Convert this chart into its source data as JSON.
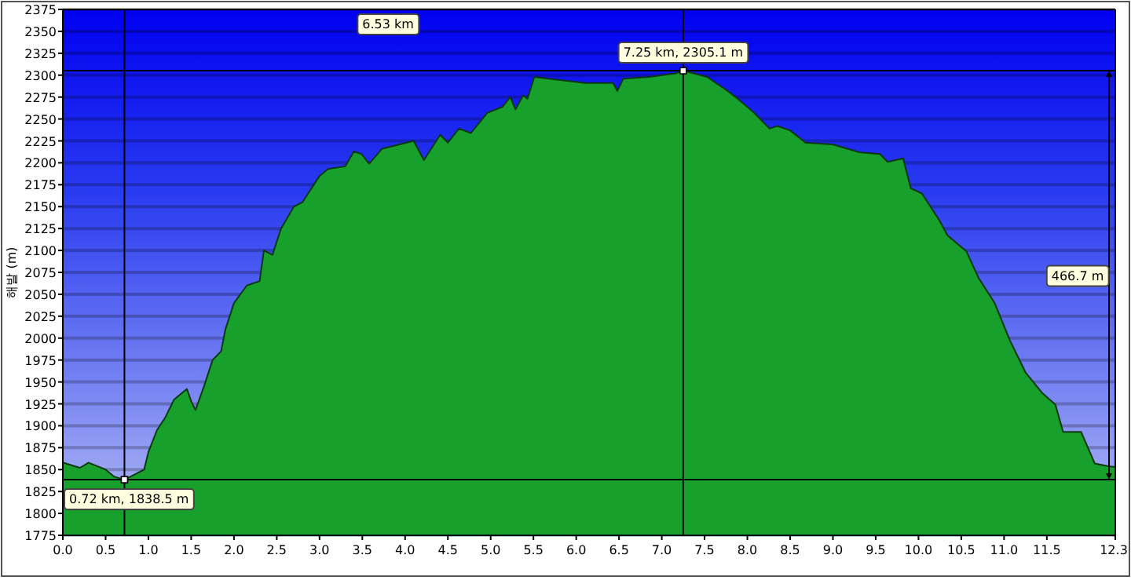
{
  "chart_data": {
    "type": "area",
    "ylabel": "해발 (m)",
    "color": "#17a02c",
    "x": [
      0,
      0.2,
      0.3,
      0.5,
      0.6,
      0.72,
      0.85,
      0.95,
      1.0,
      1.1,
      1.2,
      1.3,
      1.45,
      1.5,
      1.55,
      1.65,
      1.75,
      1.85,
      1.9,
      2.0,
      2.15,
      2.3,
      2.35,
      2.45,
      2.55,
      2.7,
      2.8,
      2.9,
      3.0,
      3.1,
      3.3,
      3.4,
      3.49,
      3.58,
      3.73,
      4.1,
      4.22,
      4.41,
      4.5,
      4.63,
      4.77,
      4.96,
      5.14,
      5.23,
      5.29,
      5.38,
      5.43,
      5.51,
      5.93,
      6.11,
      6.43,
      6.48,
      6.55,
      6.85,
      7.16,
      7.25,
      7.53,
      7.77,
      7.89,
      8.08,
      8.26,
      8.35,
      8.5,
      8.68,
      9.0,
      9.31,
      9.55,
      9.64,
      9.82,
      9.91,
      10.04,
      10.24,
      10.34,
      10.56,
      10.7,
      10.89,
      11.07,
      11.25,
      11.44,
      11.6,
      11.69,
      11.9,
      12.06,
      12.21,
      12.3
    ],
    "values": [
      1858,
      1852,
      1858,
      1850,
      1842,
      1838.5,
      1845,
      1850,
      1870,
      1895,
      1910,
      1930,
      1942,
      1928,
      1918,
      1945,
      1975,
      1985,
      2010,
      2040,
      2060,
      2065,
      2100,
      2095,
      2125,
      2150,
      2155,
      2170,
      2185,
      2193,
      2196,
      2213,
      2210,
      2199,
      2216,
      2225,
      2203,
      2232,
      2223,
      2239,
      2234,
      2257,
      2264,
      2275,
      2261,
      2277,
      2273,
      2298,
      2293,
      2291,
      2291,
      2282,
      2296,
      2298,
      2302,
      2305.1,
      2298,
      2282,
      2273,
      2257,
      2239,
      2242,
      2237,
      2223,
      2221,
      2212,
      2210,
      2201,
      2205,
      2171,
      2165,
      2135,
      2117,
      2099,
      2069,
      2040,
      1997,
      1961,
      1938,
      1924,
      1893,
      1893,
      1857,
      1854,
      1853
    ],
    "xlim": [
      0,
      12.3
    ],
    "ylim": [
      1775,
      2375
    ],
    "xticks": [
      {
        "value": 0,
        "label": "0.0"
      },
      0.5,
      {
        "value": 1,
        "label": "1.0"
      },
      1.5,
      {
        "value": 2,
        "label": "2.0"
      },
      2.5,
      {
        "value": 3,
        "label": "3.0"
      },
      3.5,
      {
        "value": 4,
        "label": "4.0"
      },
      4.5,
      {
        "value": 5,
        "label": "5.0"
      },
      5.5,
      {
        "value": 6,
        "label": "6.0"
      },
      6.5,
      {
        "value": 7,
        "label": "7.0"
      },
      7.5,
      {
        "value": 8,
        "label": "8.0"
      },
      8.5,
      {
        "value": 9,
        "label": "9.0"
      },
      9.5,
      {
        "value": 10,
        "label": "10.0"
      },
      10.5,
      {
        "value": 11,
        "label": "11.0"
      },
      11.5,
      12.3
    ],
    "yticks": [
      1775,
      1800,
      1825,
      1850,
      1875,
      1900,
      1925,
      1950,
      1975,
      2000,
      2025,
      2050,
      2075,
      2100,
      2125,
      2150,
      2175,
      2200,
      2225,
      2250,
      2275,
      2300,
      2325,
      2350,
      2375
    ],
    "grid": "y",
    "ref_lines": [
      {
        "axis": "x",
        "value": 0.72,
        "color": "#000000"
      },
      {
        "axis": "x",
        "value": 7.25,
        "color": "#000000"
      },
      {
        "axis": "y",
        "value": 1838.5,
        "color": "#000000"
      },
      {
        "axis": "y",
        "value": 2305.1,
        "color": "#000000"
      }
    ],
    "annotations": [
      {
        "text": "0.72 km, 1838.5 m",
        "x": 0.72,
        "y": 1838.5
      },
      {
        "text": "7.25 km, 2305.1 m",
        "x": 7.25,
        "y": 2305.1
      },
      "6.53 km",
      "466.7 m"
    ]
  }
}
